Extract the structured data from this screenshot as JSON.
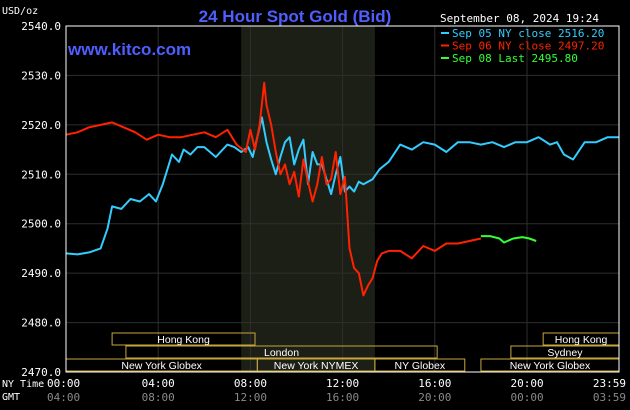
{
  "chart_data": {
    "type": "line",
    "title": "24 Hour Spot Gold (Bid)",
    "watermark": "www.kitco.com",
    "unit_label": "USD/oz",
    "timestamp": "September 08, 2024 19:24",
    "ylim": [
      2470,
      2540
    ],
    "y_ticks": [
      "2540.0",
      "2530.0",
      "2520.0",
      "2510.0",
      "2500.0",
      "2490.0",
      "2480.0",
      "2470.0"
    ],
    "x_row_label_1": "NY Time",
    "x_row_label_2": "GMT",
    "x_ticks_ny": [
      "00:00",
      "04:00",
      "08:00",
      "12:00",
      "16:00",
      "20:00",
      "23:59"
    ],
    "x_ticks_gmt": [
      "04:00",
      "08:00",
      "12:00",
      "16:00",
      "20:00",
      "00:00",
      "03:59"
    ],
    "shaded_session_hours": [
      7.6,
      13.4
    ],
    "legend": [
      {
        "name": "Sep 05 NY close 2516.20",
        "color": "#33ccff"
      },
      {
        "name": "Sep 06 NY close 2497.20",
        "color": "#ff2200"
      },
      {
        "name": "Sep 08 Last 2495.80",
        "color": "#33ff33"
      }
    ],
    "series": [
      {
        "name": "Sep 05 NY close 2516.20",
        "color": "#33ccff",
        "x": [
          0,
          0.5,
          1.0,
          1.5,
          1.8,
          2.0,
          2.4,
          2.8,
          3.2,
          3.6,
          3.9,
          4.2,
          4.6,
          4.9,
          5.1,
          5.4,
          5.7,
          6.0,
          6.5,
          7.0,
          7.3,
          7.6,
          7.9,
          8.1,
          8.3,
          8.5,
          8.7,
          8.9,
          9.1,
          9.3,
          9.5,
          9.7,
          9.9,
          10.1,
          10.3,
          10.5,
          10.7,
          10.9,
          11.1,
          11.3,
          11.5,
          11.7,
          11.9,
          12.1,
          12.3,
          12.5,
          12.7,
          12.9,
          13.1,
          13.3,
          13.6,
          14.0,
          14.5,
          15.0,
          15.5,
          16.0,
          16.5,
          17.0,
          17.5,
          18.0,
          18.5,
          19.0,
          19.5,
          20.0,
          20.5,
          21.0,
          21.3,
          21.6,
          22.0,
          22.5,
          23.0,
          23.5,
          23.99
        ],
        "values": [
          2494.0,
          2493.8,
          2494.2,
          2495.0,
          2499.0,
          2503.5,
          2503.0,
          2505.0,
          2504.5,
          2506.0,
          2504.5,
          2508.0,
          2514.0,
          2512.5,
          2515.0,
          2514.0,
          2515.5,
          2515.5,
          2513.5,
          2516.0,
          2515.5,
          2514.5,
          2515.5,
          2513.5,
          2517.5,
          2521.5,
          2516.5,
          2513.0,
          2510.0,
          2513.5,
          2516.5,
          2517.5,
          2512.0,
          2515.0,
          2517.0,
          2508.0,
          2514.5,
          2512.0,
          2512.0,
          2509.0,
          2506.0,
          2510.0,
          2513.5,
          2506.5,
          2507.5,
          2506.5,
          2508.5,
          2508.0,
          2508.5,
          2509.0,
          2511.0,
          2512.5,
          2516.0,
          2515.0,
          2516.5,
          2516.0,
          2514.5,
          2516.5,
          2516.5,
          2516.0,
          2516.5,
          2515.5,
          2516.5,
          2516.5,
          2517.5,
          2516.0,
          2516.5,
          2514.0,
          2513.0,
          2516.5,
          2516.5,
          2517.5,
          2517.5
        ]
      },
      {
        "name": "Sep 06 NY close 2497.20",
        "color": "#ff2200",
        "x": [
          0,
          0.5,
          1.0,
          1.5,
          2.0,
          2.5,
          3.0,
          3.5,
          4.0,
          4.5,
          5.0,
          5.5,
          6.0,
          6.5,
          7.0,
          7.4,
          7.8,
          8.0,
          8.2,
          8.4,
          8.6,
          8.7,
          8.9,
          9.1,
          9.3,
          9.5,
          9.7,
          9.9,
          10.1,
          10.3,
          10.5,
          10.7,
          10.9,
          11.1,
          11.3,
          11.5,
          11.7,
          11.9,
          12.1,
          12.3,
          12.5,
          12.7,
          12.9,
          13.1,
          13.3,
          13.5,
          13.7,
          14.0,
          14.5,
          15.0,
          15.5,
          16.0,
          16.5,
          17.0,
          17.5,
          18.0
        ],
        "values": [
          2518.0,
          2518.5,
          2519.5,
          2520.0,
          2520.5,
          2519.5,
          2518.5,
          2517.0,
          2518.0,
          2517.5,
          2517.5,
          2518.0,
          2518.5,
          2517.5,
          2519.0,
          2516.0,
          2514.5,
          2519.0,
          2515.0,
          2520.0,
          2528.5,
          2524.0,
          2520.0,
          2514.5,
          2510.0,
          2512.0,
          2508.0,
          2510.5,
          2505.5,
          2513.0,
          2508.5,
          2504.5,
          2508.0,
          2513.5,
          2508.0,
          2509.0,
          2514.5,
          2506.0,
          2509.5,
          2495.0,
          2491.0,
          2490.0,
          2485.5,
          2487.5,
          2489.0,
          2492.5,
          2494.0,
          2494.5,
          2494.5,
          2493.0,
          2495.5,
          2494.5,
          2496.0,
          2496.0,
          2496.5,
          2497.0
        ]
      },
      {
        "name": "Sep 08 Last 2495.80",
        "color": "#33ff33",
        "x": [
          18.0,
          18.4,
          18.8,
          19.0,
          19.4,
          19.8,
          20.1,
          20.4
        ],
        "values": [
          2497.5,
          2497.5,
          2497.0,
          2496.2,
          2497.0,
          2497.3,
          2497.0,
          2496.5
        ]
      }
    ],
    "sessions": [
      {
        "label": "Hong Kong",
        "row": 1,
        "start": 2.0,
        "end": 8.2
      },
      {
        "label": "London",
        "row": 2,
        "start": 2.6,
        "end": 16.1
      },
      {
        "label": "New York Globex",
        "row": 3,
        "start": 0.0,
        "end": 8.3
      },
      {
        "label": "New York NYMEX",
        "row": 3,
        "start": 8.3,
        "end": 13.4
      },
      {
        "label": "NY Globex",
        "row": 3,
        "start": 13.4,
        "end": 17.3
      },
      {
        "label": "Hong Kong",
        "row": 1,
        "start": 20.7,
        "end": 23.99
      },
      {
        "label": "Sydney",
        "row": 2,
        "start": 19.3,
        "end": 23.99
      },
      {
        "label": "New York Globex",
        "row": 3,
        "start": 18.0,
        "end": 23.99
      }
    ]
  }
}
